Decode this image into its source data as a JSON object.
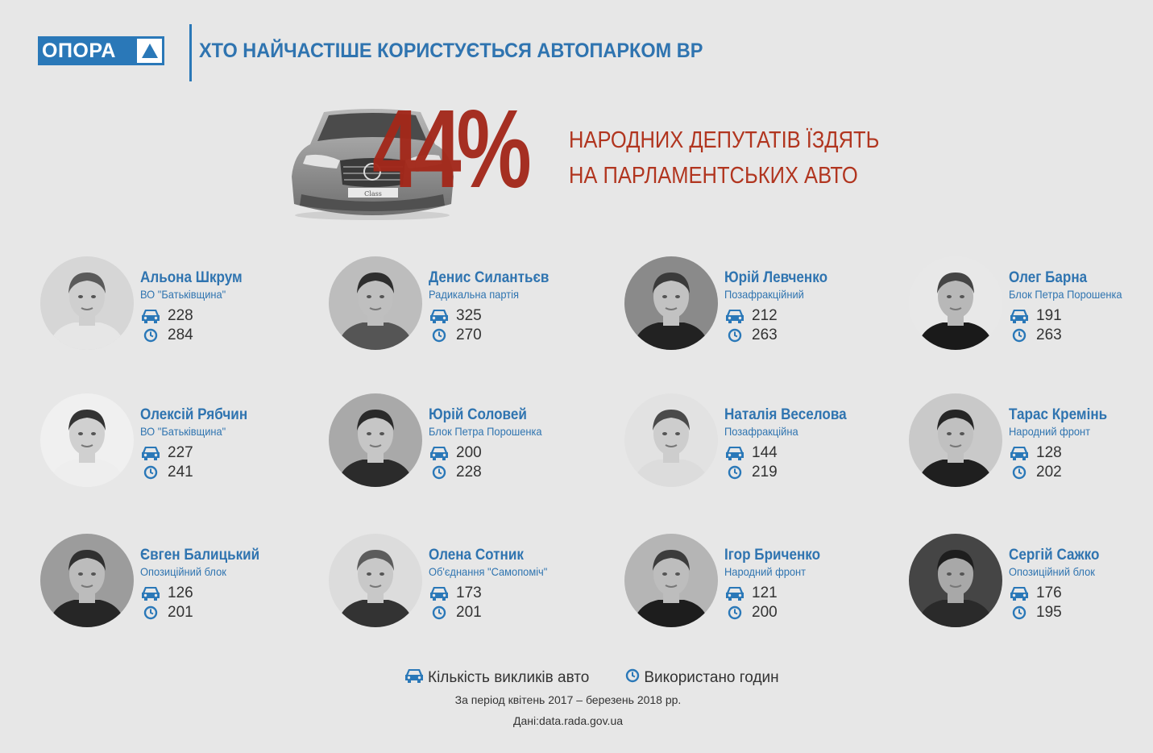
{
  "header": {
    "logo_text": "ОПОРА",
    "title": "ХТО НАЙЧАСТІШЕ КОРИСТУЄТЬСЯ АВТОПАРКОМ ВР"
  },
  "hero": {
    "percent": "44%",
    "line1": "НАРОДНИХ ДЕПУТАТІВ ЇЗДЯТЬ",
    "line2": "НА ПАРЛАМЕНТСЬКИХ АВТО",
    "car_plate": "Class"
  },
  "colors": {
    "brand_blue": "#2a78b8",
    "accent_red": "#a3281a",
    "background": "#e7e7e7"
  },
  "icons": {
    "calls": "car-icon",
    "hours": "clock-icon"
  },
  "people": [
    {
      "name": "Альона Шкрум",
      "party": "ВО \"Батьківщина\"",
      "calls": "228",
      "hours": "284"
    },
    {
      "name": "Денис Силантьєв",
      "party": "Радикальна партія",
      "calls": "325",
      "hours": "270"
    },
    {
      "name": "Юрій Левченко",
      "party": "Позафракційний",
      "calls": "212",
      "hours": "263"
    },
    {
      "name": "Олег Барна",
      "party": "Блок Петра Порошенка",
      "calls": "191",
      "hours": "263"
    },
    {
      "name": "Олексій Рябчин",
      "party": "ВО \"Батьківщина\"",
      "calls": "227",
      "hours": "241"
    },
    {
      "name": "Юрій Соловей",
      "party": "Блок Петра Порошенка",
      "calls": "200",
      "hours": "228"
    },
    {
      "name": "Наталія Веселова",
      "party": "Позафракційна",
      "calls": "144",
      "hours": "219"
    },
    {
      "name": "Тарас Кремінь",
      "party": "Народний фронт",
      "calls": "128",
      "hours": "202"
    },
    {
      "name": "Євген Балицький",
      "party": "Опозиційний блок",
      "calls": "126",
      "hours": "201"
    },
    {
      "name": "Олена Сотник",
      "party": "Об'єднання \"Самопоміч\"",
      "calls": "173",
      "hours": "201"
    },
    {
      "name": "Ігор Бриченко",
      "party": "Народний фронт",
      "calls": "121",
      "hours": "200"
    },
    {
      "name": "Сергій Сажко",
      "party": "Опозиційний блок",
      "calls": "176",
      "hours": "195"
    }
  ],
  "legend": {
    "calls_label": "Кількість викликів авто",
    "hours_label": "Використано годин"
  },
  "footer": {
    "period": "За період квітень 2017 – березень 2018 рр.",
    "source": "Дані:data.rada.gov.ua"
  }
}
